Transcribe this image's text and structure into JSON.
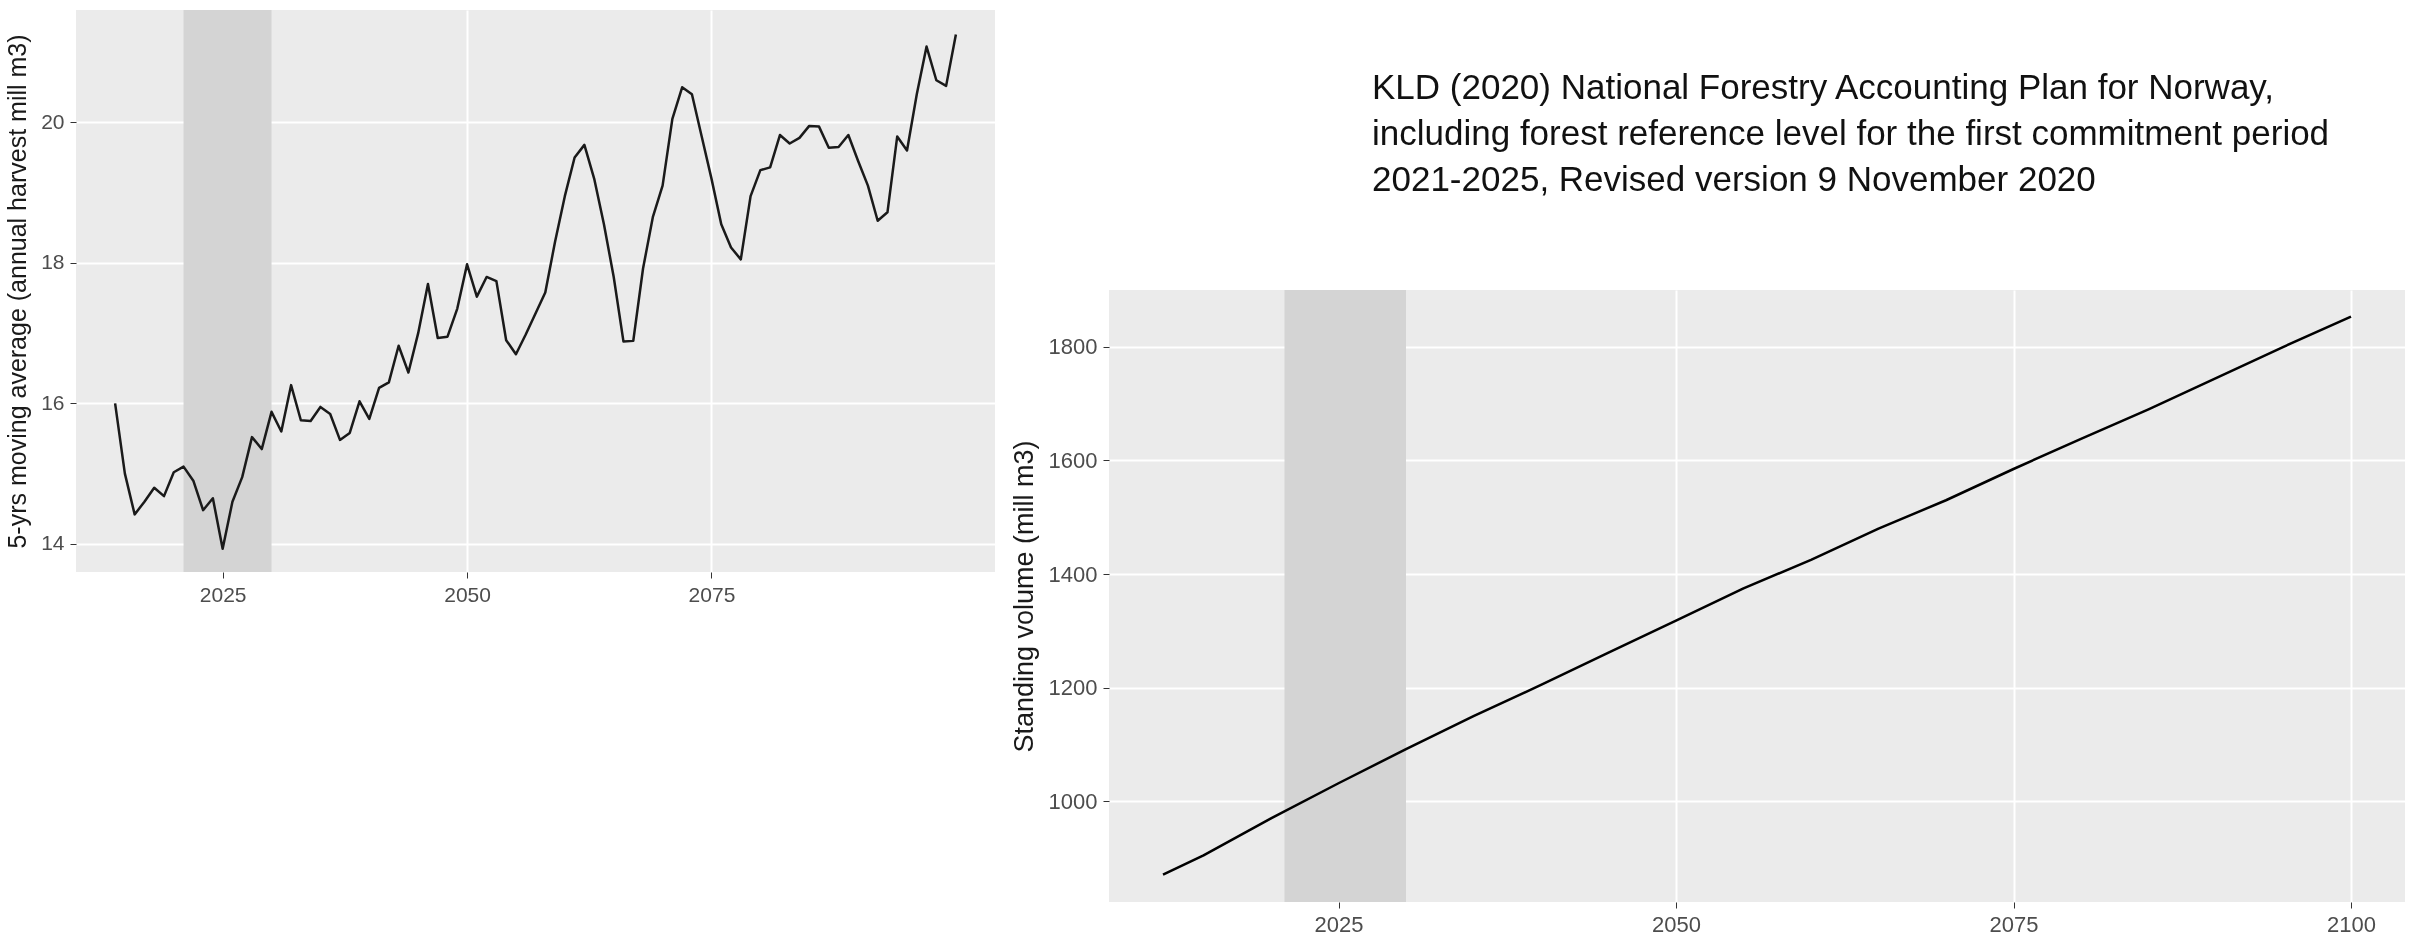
{
  "chart_data": [
    {
      "type": "line",
      "ylabel": "5-yrs moving average (annual harvest mill m3)",
      "x": [
        2014,
        2015,
        2016,
        2017,
        2018,
        2019,
        2020,
        2021,
        2022,
        2023,
        2024,
        2025,
        2026,
        2027,
        2028,
        2029,
        2030,
        2031,
        2032,
        2033,
        2034,
        2035,
        2036,
        2037,
        2038,
        2039,
        2040,
        2041,
        2042,
        2043,
        2044,
        2045,
        2046,
        2047,
        2048,
        2049,
        2050,
        2051,
        2052,
        2053,
        2054,
        2055,
        2056,
        2057,
        2058,
        2059,
        2060,
        2061,
        2062,
        2063,
        2064,
        2065,
        2066,
        2067,
        2068,
        2069,
        2070,
        2071,
        2072,
        2073,
        2074,
        2075,
        2076,
        2077,
        2078,
        2079,
        2080,
        2081,
        2082,
        2083,
        2084,
        2085,
        2086,
        2087,
        2088,
        2089,
        2090,
        2091,
        2092,
        2093,
        2094,
        2095,
        2096,
        2097,
        2098,
        2099,
        2100
      ],
      "series": [
        {
          "color": "#1a1a1a",
          "values": [
            16.0,
            15.0,
            14.42,
            14.6,
            14.8,
            14.68,
            15.02,
            15.1,
            14.9,
            14.48,
            14.65,
            13.93,
            14.6,
            14.95,
            15.52,
            15.35,
            15.88,
            15.6,
            16.26,
            15.76,
            15.75,
            15.95,
            15.85,
            15.48,
            15.58,
            16.03,
            15.78,
            16.22,
            16.3,
            16.82,
            16.44,
            17.0,
            17.7,
            16.93,
            16.95,
            17.35,
            17.98,
            17.52,
            17.8,
            17.74,
            16.9,
            16.7,
            16.98,
            17.28,
            17.58,
            18.3,
            18.95,
            19.5,
            19.68,
            19.2,
            18.55,
            17.8,
            16.88,
            16.89,
            17.92,
            18.65,
            19.1,
            20.05,
            20.5,
            20.4,
            19.8,
            19.2,
            18.55,
            18.22,
            18.05,
            18.95,
            19.32,
            19.36,
            19.82,
            19.7,
            19.78,
            19.95,
            19.94,
            19.64,
            19.65,
            19.82,
            19.45,
            19.1,
            18.6,
            18.72,
            19.8,
            19.6,
            20.4,
            21.08,
            20.6,
            20.52,
            21.25
          ]
        }
      ],
      "xlim": [
        2010,
        2104
      ],
      "xticks": [
        2025,
        2050,
        2075
      ],
      "ylim": [
        13.6,
        21.6
      ],
      "yticks": [
        14,
        16,
        18,
        20
      ],
      "bands": [
        {
          "axis": "x",
          "from": 2021,
          "to": 2030,
          "color": "#d4d4d4"
        }
      ],
      "grid": true
    },
    {
      "type": "line",
      "ylabel": "Standing volume (mill m3)",
      "annotations": [
        "KLD (2020) National Forestry Accounting Plan for Norway, including forest reference level for the first commitment period 2021-2025, Revised version  9 November 2020"
      ],
      "x": [
        2012,
        2015,
        2020,
        2025,
        2030,
        2035,
        2040,
        2045,
        2050,
        2055,
        2060,
        2065,
        2070,
        2075,
        2080,
        2085,
        2090,
        2095,
        2100
      ],
      "series": [
        {
          "color": "#000000",
          "values": [
            871,
            905,
            970,
            1032,
            1092,
            1150,
            1205,
            1262,
            1318,
            1375,
            1425,
            1480,
            1530,
            1585,
            1638,
            1690,
            1745,
            1800,
            1853
          ]
        }
      ],
      "xlim": [
        2008,
        2104
      ],
      "xticks": [
        2025,
        2050,
        2075,
        2100
      ],
      "ylim": [
        823,
        1900
      ],
      "yticks": [
        1000,
        1200,
        1400,
        1600,
        1800
      ],
      "bands": [
        {
          "axis": "x",
          "from": 2021,
          "to": 2030,
          "color": "#d4d4d4"
        }
      ],
      "grid": true
    }
  ]
}
